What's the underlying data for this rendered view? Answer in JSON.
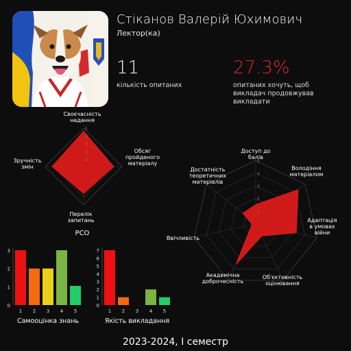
{
  "header": {
    "name": "Стіканов Валерій Юхимович",
    "role": "Лектор(ка)",
    "respondents_value": "11",
    "respondents_label": "кількість опитаних",
    "percent_value": "27.3%",
    "percent_label": "опитаних хочуть, щоб викладач продовжував викладати",
    "accent_color": "#e0282b"
  },
  "footer": {
    "text": "2023-2024, I семестр"
  },
  "chart_data": [
    {
      "type": "radar",
      "title": "РСО",
      "scale_labels": [
        "1",
        "2",
        "3",
        "4",
        "5"
      ],
      "rlim": [
        0,
        5
      ],
      "axes": [
        [
          "Своєчасність",
          "надання"
        ],
        [
          "Обсяг",
          "пройденого",
          "матеріалу"
        ],
        [
          "Перелік",
          "запитань"
        ],
        [
          "Зручність",
          "змін"
        ]
      ],
      "values": [
        4.6,
        3.9,
        3.5,
        4.1
      ],
      "fill_color": "#e11b1b"
    },
    {
      "type": "radar",
      "title": "",
      "scale_labels": [
        "1",
        "2",
        "3",
        "4",
        "5"
      ],
      "rlim": [
        0,
        5
      ],
      "axes": [
        [
          "Доступ до",
          "балів"
        ],
        [
          "Володіння",
          "матеріалом"
        ],
        [
          "Адаптація",
          "в умовах",
          "війни"
        ],
        [
          "Об'єктивність",
          "оцінювання"
        ],
        [
          "Академічна",
          "доброчесність"
        ],
        [
          "Ввічливість"
        ],
        [
          "Достатність",
          "теоретичних",
          "матеріалів"
        ]
      ],
      "values": [
        1.5,
        4.3,
        3.3,
        1.1,
        3.6,
        0.3,
        1.3
      ],
      "fill_color": "#e11b1b"
    },
    {
      "type": "bar",
      "xlabel": "Самооцінка знань",
      "categories": [
        "1",
        "2",
        "3",
        "4",
        "5"
      ],
      "values": [
        3,
        2,
        2,
        3,
        1.05
      ],
      "yticks": [
        "0",
        "1",
        "2",
        "3"
      ],
      "ylim": [
        0,
        3
      ],
      "colors": [
        "#ee1111",
        "#f26b12",
        "#e8d01b",
        "#7cb342",
        "#22cc66"
      ]
    },
    {
      "type": "bar",
      "xlabel": "Якість викладання",
      "categories": [
        "1",
        "2",
        "3",
        "4",
        "5"
      ],
      "values": [
        7,
        1,
        0,
        2,
        1
      ],
      "yticks": [
        "0",
        "1",
        "2",
        "3",
        "4",
        "5",
        "6",
        "7"
      ],
      "ylim": [
        0,
        7
      ],
      "colors": [
        "#ee1111",
        "#f26b12",
        "#e8d01b",
        "#7cb342",
        "#22cc66"
      ]
    }
  ]
}
